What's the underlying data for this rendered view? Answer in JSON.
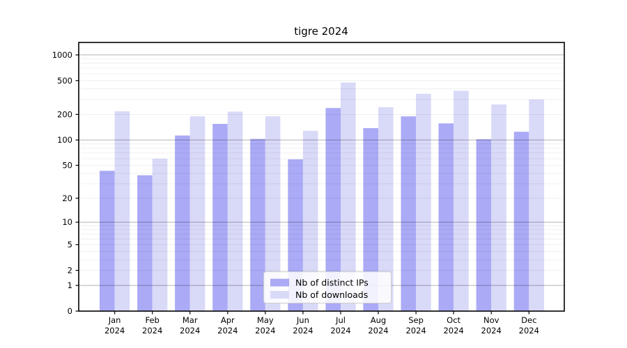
{
  "title": "tigre 2024",
  "chart_data": {
    "type": "bar",
    "title": "tigre 2024",
    "categories": [
      "Jan 2024",
      "Feb 2024",
      "Mar 2024",
      "Apr 2024",
      "May 2024",
      "Jun 2024",
      "Jul 2024",
      "Aug 2024",
      "Sep 2024",
      "Oct 2024",
      "Nov 2024",
      "Dec 2024"
    ],
    "series": [
      {
        "name": "Nb of distinct IPs",
        "color": "#aaaaf6",
        "values": [
          43,
          38,
          113,
          155,
          103,
          59,
          238,
          138,
          190,
          157,
          102,
          125
        ]
      },
      {
        "name": "Nb of downloads",
        "color": "#d9d9f8",
        "values": [
          218,
          60,
          190,
          216,
          190,
          128,
          475,
          243,
          350,
          380,
          262,
          300
        ]
      }
    ],
    "yscale": "log1p",
    "ylim": [
      0,
      1400
    ],
    "yticks": [
      0,
      1,
      2,
      5,
      10,
      20,
      50,
      100,
      200,
      500,
      1000
    ],
    "grid": {
      "major": [
        1,
        10,
        100,
        1000
      ],
      "minor_multiples": [
        2,
        3,
        4,
        5,
        6,
        7,
        8,
        9
      ],
      "minor_bases": [
        1,
        10,
        100
      ]
    },
    "legend": {
      "position": "lower center"
    },
    "colors": {
      "axis": "#000000",
      "major_grid_opacity": 0.3,
      "minor_grid_opacity": 0.08,
      "background": "#ffffff"
    }
  }
}
